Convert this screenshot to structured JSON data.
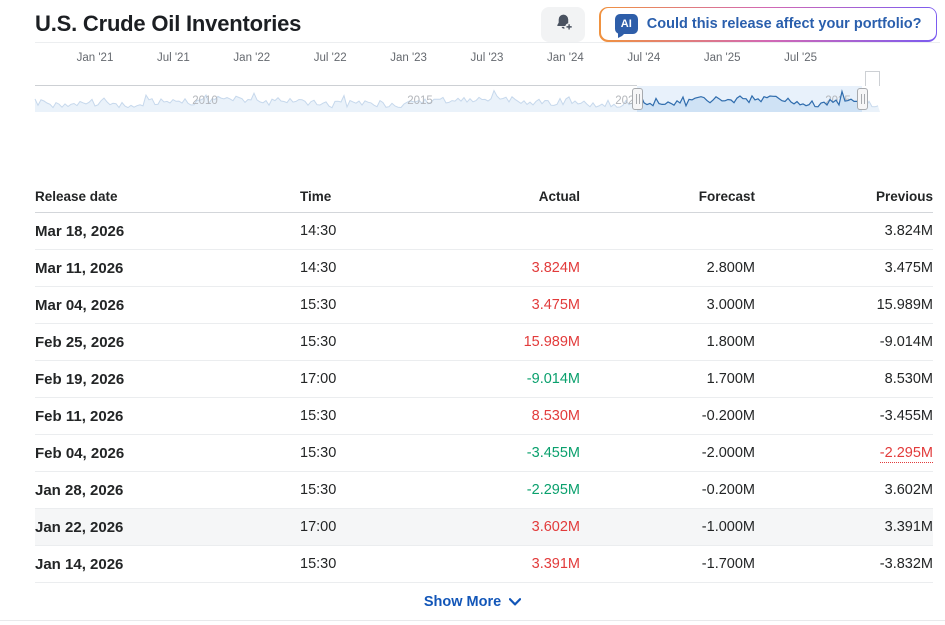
{
  "header": {
    "title": "U.S. Crude Oil Inventories",
    "ai_button": {
      "badge": "AI",
      "label": "Could this release affect your portfolio?"
    }
  },
  "chart": {
    "x_axis_labels": [
      "Jan '21",
      "Jul '21",
      "Jan '22",
      "Jul '22",
      "Jan '23",
      "Jul '23",
      "Jan '24",
      "Jul '24",
      "Jan '25",
      "Jul '25"
    ],
    "navigator_year_labels": [
      "2010",
      "2015",
      "2020",
      "2025"
    ],
    "colors": {
      "selected_line": "#2f6cad",
      "selected_fill": "#cfe2f5",
      "selection_background": "#e8f1fb",
      "unselected_line": "#c6d8ec",
      "unselected_fill": "#eaf2fa"
    }
  },
  "table": {
    "columns": [
      "Release date",
      "Time",
      "Actual",
      "Forecast",
      "Previous"
    ],
    "rows": [
      {
        "date": "Mar 18, 2026",
        "time": "14:30",
        "actual": "",
        "actual_color": null,
        "forecast": "",
        "previous": "3.824M",
        "previous_revised": false,
        "hovered": false
      },
      {
        "date": "Mar 11, 2026",
        "time": "14:30",
        "actual": "3.824M",
        "actual_color": "red",
        "forecast": "2.800M",
        "previous": "3.475M",
        "previous_revised": false,
        "hovered": false
      },
      {
        "date": "Mar 04, 2026",
        "time": "15:30",
        "actual": "3.475M",
        "actual_color": "red",
        "forecast": "3.000M",
        "previous": "15.989M",
        "previous_revised": false,
        "hovered": false
      },
      {
        "date": "Feb 25, 2026",
        "time": "15:30",
        "actual": "15.989M",
        "actual_color": "red",
        "forecast": "1.800M",
        "previous": "-9.014M",
        "previous_revised": false,
        "hovered": false
      },
      {
        "date": "Feb 19, 2026",
        "time": "17:00",
        "actual": "-9.014M",
        "actual_color": "green",
        "forecast": "1.700M",
        "previous": "8.530M",
        "previous_revised": false,
        "hovered": false
      },
      {
        "date": "Feb 11, 2026",
        "time": "15:30",
        "actual": "8.530M",
        "actual_color": "red",
        "forecast": "-0.200M",
        "previous": "-3.455M",
        "previous_revised": false,
        "hovered": false
      },
      {
        "date": "Feb 04, 2026",
        "time": "15:30",
        "actual": "-3.455M",
        "actual_color": "green",
        "forecast": "-2.000M",
        "previous": "-2.295M",
        "previous_revised": true,
        "hovered": false
      },
      {
        "date": "Jan 28, 2026",
        "time": "15:30",
        "actual": "-2.295M",
        "actual_color": "green",
        "forecast": "-0.200M",
        "previous": "3.602M",
        "previous_revised": false,
        "hovered": false
      },
      {
        "date": "Jan 22, 2026",
        "time": "17:00",
        "actual": "3.602M",
        "actual_color": "red",
        "forecast": "-1.000M",
        "previous": "3.391M",
        "previous_revised": false,
        "hovered": true
      },
      {
        "date": "Jan 14, 2026",
        "time": "15:30",
        "actual": "3.391M",
        "actual_color": "red",
        "forecast": "-1.700M",
        "previous": "-3.832M",
        "previous_revised": false,
        "hovered": false
      }
    ],
    "show_more_label": "Show More"
  },
  "colors": {
    "negative_red": "#e23b3b",
    "positive_green": "#0aa06d",
    "link_blue": "#1256b8"
  }
}
